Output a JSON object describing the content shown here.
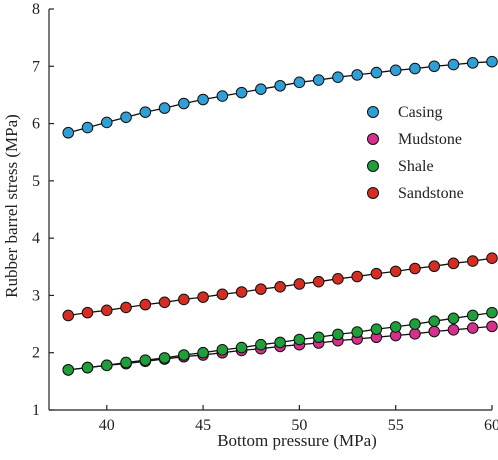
{
  "chart_data": {
    "type": "scatter",
    "title": "",
    "xlabel": "Bottom pressure (MPa)",
    "ylabel": "Rubber barrel stress (MPa)",
    "xlim": [
      37,
      60
    ],
    "ylim": [
      1,
      8
    ],
    "xticks": [
      40,
      45,
      50,
      55,
      60
    ],
    "yticks": [
      1,
      2,
      3,
      4,
      5,
      6,
      7,
      8
    ],
    "grid": false,
    "legend_position": "right",
    "x": [
      38,
      39,
      40,
      41,
      42,
      43,
      44,
      45,
      46,
      47,
      48,
      49,
      50,
      51,
      52,
      53,
      54,
      55,
      56,
      57,
      58,
      59,
      60
    ],
    "series": [
      {
        "name": "Casing",
        "color": "#2f9fd6",
        "values": [
          5.84,
          5.93,
          6.02,
          6.11,
          6.2,
          6.27,
          6.35,
          6.42,
          6.48,
          6.54,
          6.6,
          6.66,
          6.72,
          6.76,
          6.81,
          6.85,
          6.89,
          6.93,
          6.96,
          7.0,
          7.03,
          7.06,
          7.08
        ]
      },
      {
        "name": "Mudstone",
        "color": "#d62f8c",
        "values": [
          1.7,
          1.74,
          1.78,
          1.81,
          1.85,
          1.89,
          1.93,
          1.96,
          2.0,
          2.04,
          2.07,
          2.11,
          2.14,
          2.17,
          2.21,
          2.24,
          2.27,
          2.3,
          2.33,
          2.37,
          2.4,
          2.43,
          2.46
        ]
      },
      {
        "name": "Shale",
        "color": "#1f9e3a",
        "values": [
          1.7,
          1.74,
          1.78,
          1.83,
          1.87,
          1.91,
          1.96,
          2.0,
          2.05,
          2.09,
          2.14,
          2.18,
          2.23,
          2.27,
          2.32,
          2.36,
          2.41,
          2.45,
          2.5,
          2.55,
          2.6,
          2.65,
          2.7
        ]
      },
      {
        "name": "Sandstone",
        "color": "#d62d22",
        "values": [
          2.65,
          2.7,
          2.74,
          2.79,
          2.84,
          2.88,
          2.93,
          2.97,
          3.02,
          3.06,
          3.11,
          3.15,
          3.2,
          3.24,
          3.29,
          3.33,
          3.38,
          3.42,
          3.47,
          3.51,
          3.56,
          3.6,
          3.65
        ]
      }
    ]
  }
}
